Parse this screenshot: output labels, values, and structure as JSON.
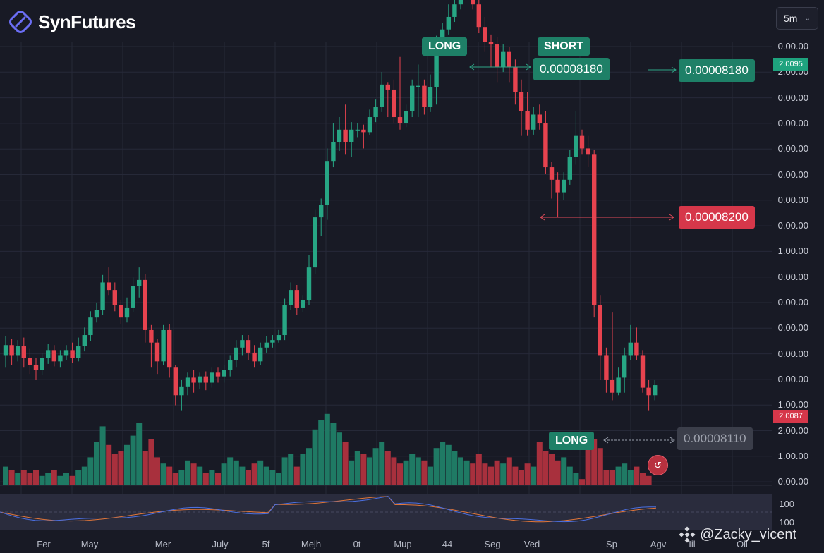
{
  "app": {
    "brand": "SynFutures"
  },
  "toolbar": {
    "timeframe": "5m"
  },
  "colors": {
    "background": "#181a25",
    "up": "#27a684",
    "down": "#e7434f",
    "volume_up": "#1f7a64",
    "volume_down": "#a8303d",
    "tag_green": "#1e8067",
    "tag_red": "#d6374a"
  },
  "price_axis": {
    "labels": [
      "0.00.00",
      "2.00.00",
      "0.00.00",
      "0.00.00",
      "0.00.00",
      "0.00.00",
      "0.00.00",
      "0.00.00",
      "1.00.00",
      "0.00.00",
      "0.00.00",
      "0.00.00",
      "0.00.00",
      "0.00.00",
      "1.00.00",
      "2.00.00",
      "1.00.00",
      "0.00.00"
    ],
    "badge_top": "2.0095",
    "badge_current": "2.0087"
  },
  "time_axis": {
    "labels": [
      "Fer",
      "May",
      "Mer",
      "July",
      "5f",
      "Mejh",
      "0t",
      "Mup",
      "44",
      "Seg",
      "Ved",
      "Sp",
      "Agv",
      "Iil",
      "Oil"
    ]
  },
  "annotations": {
    "long_top": "LONG",
    "short": "SHORT",
    "short_price": "0.00008180",
    "right_price": "0.00008180",
    "red_price": "0.00008200",
    "long_bottom": "LONG",
    "grey_price": "0.00008110"
  },
  "oscillator": {
    "labels": [
      "100",
      "100"
    ]
  },
  "watermark": {
    "text": "@Zacky_vicent"
  },
  "chart_data": {
    "type": "candlestick",
    "title": "",
    "candles": [
      {
        "o": 8.02e-05,
        "c": 8.028e-05,
        "h": 8.035e-05,
        "l": 8.01e-05
      },
      {
        "o": 8.028e-05,
        "c": 8.02e-05,
        "h": 8.033e-05,
        "l": 8.012e-05
      },
      {
        "o": 8.02e-05,
        "c": 8.027e-05,
        "h": 8.032e-05,
        "l": 8.015e-05
      },
      {
        "o": 8.027e-05,
        "c": 8.018e-05,
        "h": 8.034e-05,
        "l": 8.01e-05
      },
      {
        "o": 8.018e-05,
        "c": 8.012e-05,
        "h": 8.025e-05,
        "l": 8.005e-05
      },
      {
        "o": 8.012e-05,
        "c": 8.008e-05,
        "h": 8.018e-05,
        "l": 8e-05
      },
      {
        "o": 8.008e-05,
        "c": 8.018e-05,
        "h": 8.022e-05,
        "l": 8.004e-05
      },
      {
        "o": 8.018e-05,
        "c": 8.024e-05,
        "h": 8.029e-05,
        "l": 8.013e-05
      },
      {
        "o": 8.024e-05,
        "c": 8.015e-05,
        "h": 8.028e-05,
        "l": 8.011e-05
      },
      {
        "o": 8.015e-05,
        "c": 8.02e-05,
        "h": 8.024e-05,
        "l": 8.01e-05
      },
      {
        "o": 8.02e-05,
        "c": 8.024e-05,
        "h": 8.028e-05,
        "l": 8.016e-05
      },
      {
        "o": 8.024e-05,
        "c": 8.018e-05,
        "h": 8.03e-05,
        "l": 8.014e-05
      },
      {
        "o": 8.018e-05,
        "c": 8.027e-05,
        "h": 8.034e-05,
        "l": 8.015e-05
      },
      {
        "o": 8.027e-05,
        "c": 8.036e-05,
        "h": 8.042e-05,
        "l": 8.023e-05
      },
      {
        "o": 8.036e-05,
        "c": 8.05e-05,
        "h": 8.055e-05,
        "l": 8.031e-05
      },
      {
        "o": 8.05e-05,
        "c": 8.056e-05,
        "h": 8.062e-05,
        "l": 8.046e-05
      },
      {
        "o": 8.056e-05,
        "c": 8.078e-05,
        "h": 8.084e-05,
        "l": 8.052e-05
      },
      {
        "o": 8.078e-05,
        "c": 8.072e-05,
        "h": 8.09e-05,
        "l": 8.068e-05
      },
      {
        "o": 8.072e-05,
        "c": 8.06e-05,
        "h": 8.078e-05,
        "l": 8.055e-05
      },
      {
        "o": 8.06e-05,
        "c": 8.05e-05,
        "h": 8.064e-05,
        "l": 8.045e-05
      },
      {
        "o": 8.05e-05,
        "c": 8.058e-05,
        "h": 8.066e-05,
        "l": 8.046e-05
      },
      {
        "o": 8.058e-05,
        "c": 8.075e-05,
        "h": 8.082e-05,
        "l": 8.054e-05
      },
      {
        "o": 8.075e-05,
        "c": 8.08e-05,
        "h": 8.09e-05,
        "l": 8.066e-05
      },
      {
        "o": 8.08e-05,
        "c": 8.04e-05,
        "h": 8.085e-05,
        "l": 8.03e-05
      },
      {
        "o": 8.04e-05,
        "c": 8.03e-05,
        "h": 8.044e-05,
        "l": 8.01e-05
      },
      {
        "o": 8.03e-05,
        "c": 8.015e-05,
        "h": 8.033e-05,
        "l": 8.005e-05
      },
      {
        "o": 8.015e-05,
        "c": 8.04e-05,
        "h": 8.044e-05,
        "l": 8.012e-05
      },
      {
        "o": 8.04e-05,
        "c": 8.01e-05,
        "h": 8.045e-05,
        "l": 8.002e-05
      },
      {
        "o": 8.01e-05,
        "c": 7.988e-05,
        "h": 8.012e-05,
        "l": 7.98e-05
      },
      {
        "o": 7.988e-05,
        "c": 7.995e-05,
        "h": 8e-05,
        "l": 7.976e-05
      },
      {
        "o": 7.995e-05,
        "c": 8.002e-05,
        "h": 8.006e-05,
        "l": 7.988e-05
      },
      {
        "o": 8.002e-05,
        "c": 7.998e-05,
        "h": 8.008e-05,
        "l": 7.99e-05
      },
      {
        "o": 7.998e-05,
        "c": 8.003e-05,
        "h": 8.006e-05,
        "l": 7.993e-05
      },
      {
        "o": 8.003e-05,
        "c": 7.998e-05,
        "h": 8.007e-05,
        "l": 7.992e-05
      },
      {
        "o": 7.998e-05,
        "c": 8.006e-05,
        "h": 8.01e-05,
        "l": 7.994e-05
      },
      {
        "o": 8.006e-05,
        "c": 8.003e-05,
        "h": 8.01e-05,
        "l": 7.998e-05
      },
      {
        "o": 8.003e-05,
        "c": 8.008e-05,
        "h": 8.012e-05,
        "l": 7.998e-05
      },
      {
        "o": 8.008e-05,
        "c": 8.016e-05,
        "h": 8.02e-05,
        "l": 8.003e-05
      },
      {
        "o": 8.016e-05,
        "c": 8.026e-05,
        "h": 8.032e-05,
        "l": 8.01e-05
      },
      {
        "o": 8.026e-05,
        "c": 8.032e-05,
        "h": 8.036e-05,
        "l": 8.02e-05
      },
      {
        "o": 8.032e-05,
        "c": 8.022e-05,
        "h": 8.036e-05,
        "l": 8.016e-05
      },
      {
        "o": 8.022e-05,
        "c": 8.015e-05,
        "h": 8.028e-05,
        "l": 8.01e-05
      },
      {
        "o": 8.015e-05,
        "c": 8.026e-05,
        "h": 8.03e-05,
        "l": 8.012e-05
      },
      {
        "o": 8.026e-05,
        "c": 8.03e-05,
        "h": 8.035e-05,
        "l": 8.022e-05
      },
      {
        "o": 8.03e-05,
        "c": 8.032e-05,
        "h": 8.036e-05,
        "l": 8.026e-05
      },
      {
        "o": 8.032e-05,
        "c": 8.036e-05,
        "h": 8.04e-05,
        "l": 8.03e-05
      },
      {
        "o": 8.036e-05,
        "c": 8.06e-05,
        "h": 8.065e-05,
        "l": 8.032e-05
      },
      {
        "o": 8.06e-05,
        "c": 8.072e-05,
        "h": 8.078e-05,
        "l": 8.056e-05
      },
      {
        "o": 8.072e-05,
        "c": 8.058e-05,
        "h": 8.076e-05,
        "l": 8.052e-05
      },
      {
        "o": 8.058e-05,
        "c": 8.064e-05,
        "h": 8.068e-05,
        "l": 8.054e-05
      },
      {
        "o": 8.064e-05,
        "c": 8.09e-05,
        "h": 8.1e-05,
        "l": 8.06e-05
      },
      {
        "o": 8.09e-05,
        "c": 8.13e-05,
        "h": 8.136e-05,
        "l": 8.085e-05
      },
      {
        "o": 8.13e-05,
        "c": 8.14e-05,
        "h": 8.145e-05,
        "l": 8.115e-05
      },
      {
        "o": 8.14e-05,
        "c": 8.175e-05,
        "h": 8.185e-05,
        "l": 8.128e-05
      },
      {
        "o": 8.175e-05,
        "c": 8.19e-05,
        "h": 8.205e-05,
        "l": 8.17e-05
      },
      {
        "o": 8.19e-05,
        "c": 8.2e-05,
        "h": 8.21e-05,
        "l": 8.183e-05
      },
      {
        "o": 8.2e-05,
        "c": 8.19e-05,
        "h": 8.22e-05,
        "l": 8.18e-05
      },
      {
        "o": 8.19e-05,
        "c": 8.2e-05,
        "h": 8.206e-05,
        "l": 8.178e-05
      },
      {
        "o": 8.2e-05,
        "c": 8.2e-05,
        "h": 8.205e-05,
        "l": 8.194e-05
      },
      {
        "o": 8.2e-05,
        "c": 8.198e-05,
        "h": 8.204e-05,
        "l": 8.185e-05
      },
      {
        "o": 8.198e-05,
        "c": 8.21e-05,
        "h": 8.216e-05,
        "l": 8.196e-05
      },
      {
        "o": 8.21e-05,
        "c": 8.218e-05,
        "h": 8.224e-05,
        "l": 8.206e-05
      },
      {
        "o": 8.218e-05,
        "c": 8.236e-05,
        "h": 8.246e-05,
        "l": 8.214e-05
      },
      {
        "o": 8.236e-05,
        "c": 8.232e-05,
        "h": 8.238e-05,
        "l": 8.21e-05
      },
      {
        "o": 8.232e-05,
        "c": 8.21e-05,
        "h": 8.24e-05,
        "l": 8.205e-05
      },
      {
        "o": 8.21e-05,
        "c": 8.205e-05,
        "h": 8.258e-05,
        "l": 8.2e-05
      },
      {
        "o": 8.205e-05,
        "c": 8.215e-05,
        "h": 8.22e-05,
        "l": 8.202e-05
      },
      {
        "o": 8.215e-05,
        "c": 8.235e-05,
        "h": 8.24e-05,
        "l": 8.21e-05
      },
      {
        "o": 8.235e-05,
        "c": 8.235e-05,
        "h": 8.252e-05,
        "l": 8.21e-05
      },
      {
        "o": 8.235e-05,
        "c": 8.218e-05,
        "h": 8.24e-05,
        "l": 8.212e-05
      },
      {
        "o": 8.218e-05,
        "c": 8.234e-05,
        "h": 8.244e-05,
        "l": 8.214e-05
      },
      {
        "o": 8.234e-05,
        "c": 8.27e-05,
        "h": 8.275e-05,
        "l": 8.22e-05
      },
      {
        "o": 8.27e-05,
        "c": 8.28e-05,
        "h": 8.285e-05,
        "l": 8.266e-05
      },
      {
        "o": 8.28e-05,
        "c": 8.29e-05,
        "h": 8.3e-05,
        "l": 8.276e-05
      },
      {
        "o": 8.29e-05,
        "c": 8.3e-05,
        "h": 8.306e-05,
        "l": 8.286e-05
      },
      {
        "o": 8.3e-05,
        "c": 8.31e-05,
        "h": 8.32e-05,
        "l": 8.296e-05
      },
      {
        "o": 8.31e-05,
        "c": 8.32e-05,
        "h": 8.324e-05,
        "l": 8.304e-05
      },
      {
        "o": 8.32e-05,
        "c": 8.3e-05,
        "h": 8.325e-05,
        "l": 8.296e-05
      },
      {
        "o": 8.3e-05,
        "c": 8.282e-05,
        "h": 8.305e-05,
        "l": 8.277e-05
      },
      {
        "o": 8.282e-05,
        "c": 8.27e-05,
        "h": 8.29e-05,
        "l": 8.262e-05
      },
      {
        "o": 8.27e-05,
        "c": 8.268e-05,
        "h": 8.276e-05,
        "l": 8.25e-05
      },
      {
        "o": 8.268e-05,
        "c": 8.25e-05,
        "h": 8.274e-05,
        "l": 8.238e-05
      },
      {
        "o": 8.25e-05,
        "c": 8.262e-05,
        "h": 8.268e-05,
        "l": 8.246e-05
      },
      {
        "o": 8.262e-05,
        "c": 8.25e-05,
        "h": 8.266e-05,
        "l": 8.238e-05
      },
      {
        "o": 8.25e-05,
        "c": 8.23e-05,
        "h": 8.256e-05,
        "l": 8.22e-05
      },
      {
        "o": 8.23e-05,
        "c": 8.215e-05,
        "h": 8.24e-05,
        "l": 8.195e-05
      },
      {
        "o": 8.215e-05,
        "c": 8.2e-05,
        "h": 8.23e-05,
        "l": 8.195e-05
      },
      {
        "o": 8.2e-05,
        "c": 8.212e-05,
        "h": 8.218e-05,
        "l": 8.196e-05
      },
      {
        "o": 8.212e-05,
        "c": 8.205e-05,
        "h": 8.22e-05,
        "l": 8.2e-05
      },
      {
        "o": 8.205e-05,
        "c": 8.17e-05,
        "h": 8.215e-05,
        "l": 8.165e-05
      },
      {
        "o": 8.17e-05,
        "c": 8.16e-05,
        "h": 8.174e-05,
        "l": 8.145e-05
      },
      {
        "o": 8.16e-05,
        "c": 8.15e-05,
        "h": 8.166e-05,
        "l": 8.13e-05
      },
      {
        "o": 8.15e-05,
        "c": 8.16e-05,
        "h": 8.166e-05,
        "l": 8.144e-05
      },
      {
        "o": 8.16e-05,
        "c": 8.178e-05,
        "h": 8.184e-05,
        "l": 8.156e-05
      },
      {
        "o": 8.178e-05,
        "c": 8.195e-05,
        "h": 8.215e-05,
        "l": 8.172e-05
      },
      {
        "o": 8.195e-05,
        "c": 8.185e-05,
        "h": 8.2e-05,
        "l": 8.18e-05
      },
      {
        "o": 8.185e-05,
        "c": 8.18e-05,
        "h": 8.195e-05,
        "l": 8.17e-05
      },
      {
        "o": 8.18e-05,
        "c": 8.06e-05,
        "h": 8.184e-05,
        "l": 8.05e-05
      },
      {
        "o": 8.06e-05,
        "c": 8.02e-05,
        "h": 8.068e-05,
        "l": 8e-05
      },
      {
        "o": 8.02e-05,
        "c": 8e-05,
        "h": 8.026e-05,
        "l": 7.99e-05
      },
      {
        "o": 8e-05,
        "c": 7.99e-05,
        "h": 8.054e-05,
        "l": 7.984e-05
      },
      {
        "o": 7.99e-05,
        "c": 8.002e-05,
        "h": 8.01e-05,
        "l": 7.988e-05
      },
      {
        "o": 8.002e-05,
        "c": 8.02e-05,
        "h": 8.026e-05,
        "l": 7.99e-05
      },
      {
        "o": 8.02e-05,
        "c": 8.03e-05,
        "h": 8.044e-05,
        "l": 8.016e-05
      },
      {
        "o": 8.03e-05,
        "c": 8.02e-05,
        "h": 8.042e-05,
        "l": 8.016e-05
      },
      {
        "o": 8.02e-05,
        "c": 7.994e-05,
        "h": 8.024e-05,
        "l": 7.99e-05
      },
      {
        "o": 7.994e-05,
        "c": 7.988e-05,
        "h": 8e-05,
        "l": 7.976e-05
      },
      {
        "o": 7.988e-05,
        "c": 7.996e-05,
        "h": 8e-05,
        "l": 7.984e-05
      }
    ],
    "volume": [
      6,
      5,
      4,
      5,
      4,
      5,
      3,
      4,
      5,
      3,
      4,
      3,
      5,
      6,
      9,
      14,
      19,
      13,
      10,
      11,
      13,
      16,
      20,
      11,
      15,
      9,
      7,
      6,
      4,
      5,
      8,
      7,
      6,
      4,
      5,
      4,
      7,
      9,
      8,
      6,
      5,
      7,
      8,
      6,
      5,
      4,
      9,
      10,
      6,
      10,
      12,
      18,
      21,
      23,
      20,
      17,
      14,
      8,
      11,
      10,
      9,
      12,
      14,
      11,
      9,
      7,
      8,
      10,
      9,
      8,
      6,
      12,
      14,
      13,
      11,
      9,
      8,
      7,
      10,
      7,
      6,
      8,
      7,
      9,
      6,
      5,
      7,
      6,
      14,
      11,
      10,
      8,
      9,
      6,
      4,
      2,
      16,
      15,
      12,
      5,
      5,
      6,
      7,
      5,
      6,
      4,
      3
    ]
  }
}
